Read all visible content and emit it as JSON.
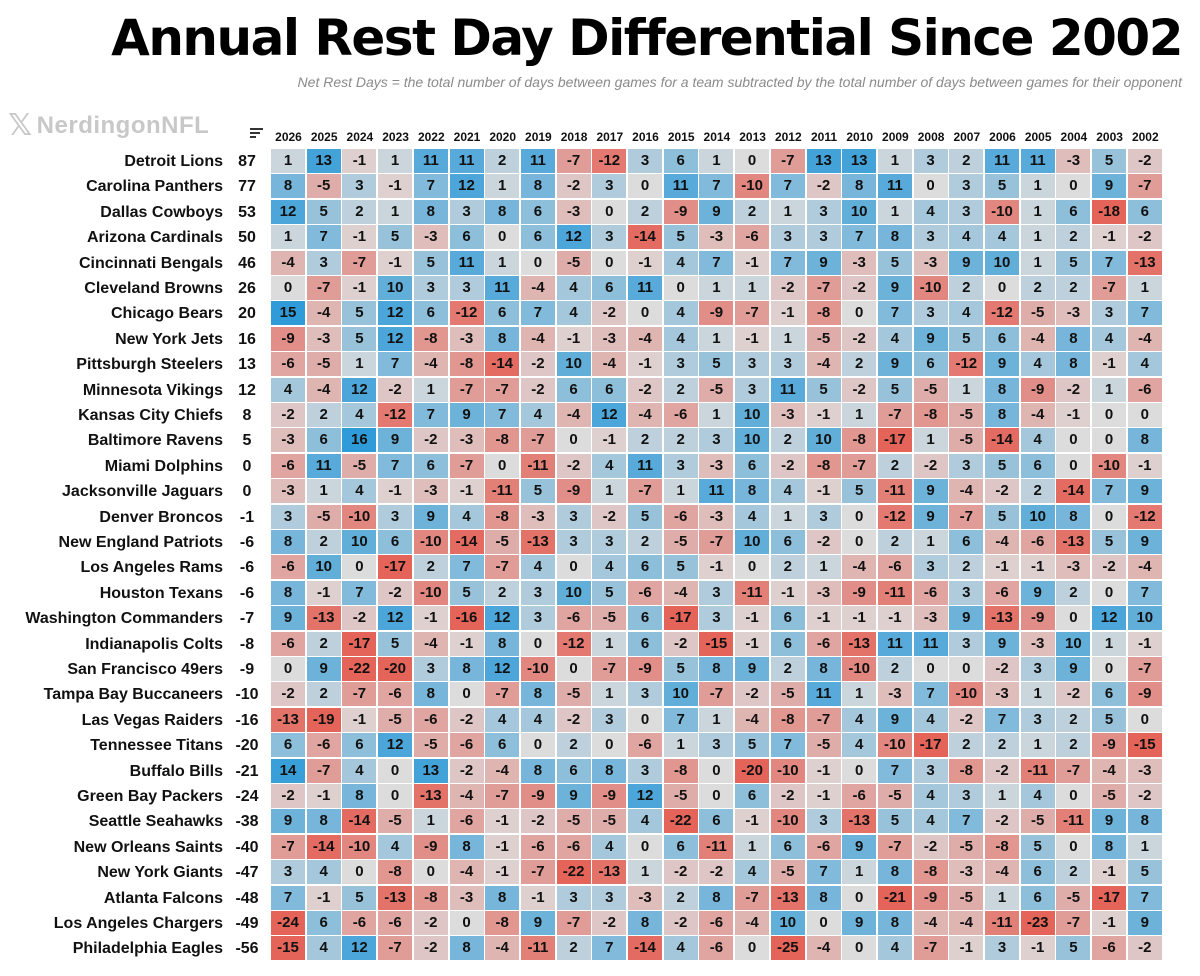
{
  "title": "Annual Rest Day Differential Since 2002",
  "subtitle": "Net Rest Days  =   the total number of days between games for a team subtracted by the total number of days between games for their opponent",
  "logo": {
    "mark": "𝕏",
    "text": "NerdingonNFL"
  },
  "colors": {
    "positive": "#2f9bd8",
    "negative": "#e4645a",
    "neutral": "#dcdcdc"
  },
  "icons": [
    "x-logo-icon",
    "sort-icon"
  ],
  "chart_data": {
    "type": "heatmap",
    "title": "Annual Rest Day Differential Since 2002",
    "columns": [
      "2026",
      "2025",
      "2024",
      "2023",
      "2022",
      "2021",
      "2020",
      "2019",
      "2018",
      "2017",
      "2016",
      "2015",
      "2014",
      "2013",
      "2012",
      "2011",
      "2010",
      "2009",
      "2008",
      "2007",
      "2006",
      "2005",
      "2004",
      "2003",
      "2002"
    ],
    "rows": [
      {
        "team": "Detroit Lions",
        "total": 87,
        "values": [
          1,
          13,
          -1,
          1,
          11,
          11,
          2,
          11,
          -7,
          -12,
          3,
          6,
          1,
          0,
          -7,
          13,
          13,
          1,
          3,
          2,
          11,
          11,
          -3,
          5,
          -2
        ]
      },
      {
        "team": "Carolina Panthers",
        "total": 77,
        "values": [
          8,
          -5,
          3,
          -1,
          7,
          12,
          1,
          8,
          -2,
          3,
          0,
          11,
          7,
          -10,
          7,
          -2,
          8,
          11,
          0,
          3,
          5,
          1,
          0,
          9,
          -7
        ]
      },
      {
        "team": "Dallas Cowboys",
        "total": 53,
        "values": [
          12,
          5,
          2,
          1,
          8,
          3,
          8,
          6,
          -3,
          0,
          2,
          -9,
          9,
          2,
          1,
          3,
          10,
          1,
          4,
          3,
          -10,
          1,
          6,
          -18,
          6
        ]
      },
      {
        "team": "Arizona Cardinals",
        "total": 50,
        "values": [
          1,
          7,
          -1,
          5,
          -3,
          6,
          0,
          6,
          12,
          3,
          -14,
          5,
          -3,
          -6,
          3,
          3,
          7,
          8,
          3,
          4,
          4,
          1,
          2,
          -1,
          -2
        ]
      },
      {
        "team": "Cincinnati Bengals",
        "total": 46,
        "values": [
          -4,
          3,
          -7,
          -1,
          5,
          11,
          1,
          0,
          -5,
          0,
          -1,
          4,
          7,
          -1,
          7,
          9,
          -3,
          5,
          -3,
          9,
          10,
          1,
          5,
          7,
          -13
        ]
      },
      {
        "team": "Cleveland Browns",
        "total": 26,
        "values": [
          0,
          -7,
          -1,
          10,
          3,
          3,
          11,
          -4,
          4,
          6,
          11,
          0,
          1,
          1,
          -2,
          -7,
          -2,
          9,
          -10,
          2,
          0,
          2,
          2,
          -7,
          1
        ]
      },
      {
        "team": "Chicago Bears",
        "total": 20,
        "values": [
          15,
          -4,
          5,
          12,
          6,
          -12,
          6,
          7,
          4,
          -2,
          0,
          4,
          -9,
          -7,
          -1,
          -8,
          0,
          7,
          3,
          4,
          -12,
          -5,
          -3,
          3,
          7
        ]
      },
      {
        "team": "New York Jets",
        "total": 16,
        "values": [
          -9,
          -3,
          5,
          12,
          -8,
          -3,
          8,
          -4,
          -1,
          -3,
          -4,
          4,
          1,
          -1,
          1,
          -5,
          -2,
          4,
          9,
          5,
          6,
          -4,
          8,
          4,
          -4
        ]
      },
      {
        "team": "Pittsburgh Steelers",
        "total": 13,
        "values": [
          -6,
          -5,
          1,
          7,
          -4,
          -8,
          -14,
          -2,
          10,
          -4,
          -1,
          3,
          5,
          3,
          3,
          -4,
          2,
          9,
          6,
          -12,
          9,
          4,
          8,
          -1,
          4
        ]
      },
      {
        "team": "Minnesota Vikings",
        "total": 12,
        "values": [
          4,
          -4,
          12,
          -2,
          1,
          -7,
          -7,
          -2,
          6,
          6,
          -2,
          2,
          -5,
          3,
          11,
          5,
          -2,
          5,
          -5,
          1,
          8,
          -9,
          -2,
          1,
          -6
        ]
      },
      {
        "team": "Kansas City Chiefs",
        "total": 8,
        "values": [
          -2,
          2,
          4,
          -12,
          7,
          9,
          7,
          4,
          -4,
          12,
          -4,
          -6,
          1,
          10,
          -3,
          -1,
          1,
          -7,
          -8,
          -5,
          8,
          -4,
          -1,
          0,
          0
        ]
      },
      {
        "team": "Baltimore Ravens",
        "total": 5,
        "values": [
          -3,
          6,
          16,
          9,
          -2,
          -3,
          -8,
          -7,
          0,
          -1,
          2,
          2,
          3,
          10,
          2,
          10,
          -8,
          -17,
          1,
          -5,
          -14,
          4,
          0,
          0,
          8
        ]
      },
      {
        "team": "Miami Dolphins",
        "total": 0,
        "values": [
          -6,
          11,
          -5,
          7,
          6,
          -7,
          0,
          -11,
          -2,
          4,
          11,
          3,
          -3,
          6,
          -2,
          -8,
          -7,
          2,
          -2,
          3,
          5,
          6,
          0,
          -10,
          -1
        ]
      },
      {
        "team": "Jacksonville Jaguars",
        "total": 0,
        "values": [
          -3,
          1,
          4,
          -1,
          -3,
          -1,
          -11,
          5,
          -9,
          1,
          -7,
          1,
          11,
          8,
          4,
          -1,
          5,
          -11,
          9,
          -4,
          -2,
          2,
          -14,
          7,
          9
        ]
      },
      {
        "team": "Denver Broncos",
        "total": -1,
        "values": [
          3,
          -5,
          -10,
          3,
          9,
          4,
          -8,
          -3,
          3,
          -2,
          5,
          -6,
          -3,
          4,
          1,
          3,
          0,
          -12,
          9,
          -7,
          5,
          10,
          8,
          0,
          -12
        ]
      },
      {
        "team": "New England Patriots",
        "total": -6,
        "values": [
          8,
          2,
          10,
          6,
          -10,
          -14,
          -5,
          -13,
          3,
          3,
          2,
          -5,
          -7,
          10,
          6,
          -2,
          0,
          2,
          1,
          6,
          -4,
          -6,
          -13,
          5,
          9
        ]
      },
      {
        "team": "Los Angeles Rams",
        "total": -6,
        "values": [
          -6,
          10,
          0,
          -17,
          2,
          7,
          -7,
          4,
          0,
          4,
          6,
          5,
          -1,
          0,
          2,
          1,
          -4,
          -6,
          3,
          2,
          -1,
          -1,
          -3,
          -2,
          -4
        ]
      },
      {
        "team": "Houston Texans",
        "total": -6,
        "values": [
          8,
          -1,
          7,
          -2,
          -10,
          5,
          2,
          3,
          10,
          5,
          -6,
          -4,
          3,
          -11,
          -1,
          -3,
          -9,
          -11,
          -6,
          3,
          -6,
          9,
          2,
          0,
          7
        ]
      },
      {
        "team": "Washington Commanders",
        "total": -7,
        "values": [
          9,
          -13,
          -2,
          12,
          -1,
          -16,
          12,
          3,
          -6,
          -5,
          6,
          -17,
          3,
          -1,
          6,
          -1,
          -1,
          -1,
          -3,
          9,
          -13,
          -9,
          0,
          12,
          10
        ]
      },
      {
        "team": "Indianapolis Colts",
        "total": -8,
        "values": [
          -6,
          2,
          -17,
          5,
          -4,
          -1,
          8,
          0,
          -12,
          1,
          6,
          -2,
          -15,
          -1,
          6,
          -6,
          -13,
          11,
          11,
          3,
          9,
          -3,
          10,
          1,
          -1
        ]
      },
      {
        "team": "San Francisco 49ers",
        "total": -9,
        "values": [
          0,
          9,
          -22,
          -20,
          3,
          8,
          12,
          -10,
          0,
          -7,
          -9,
          5,
          8,
          9,
          2,
          8,
          -10,
          2,
          0,
          0,
          -2,
          3,
          9,
          0,
          -7
        ]
      },
      {
        "team": "Tampa Bay Buccaneers",
        "total": -10,
        "values": [
          -2,
          2,
          -7,
          -6,
          8,
          0,
          -7,
          8,
          -5,
          1,
          3,
          10,
          -7,
          -2,
          -5,
          11,
          1,
          -3,
          7,
          -10,
          -3,
          1,
          -2,
          6,
          -9
        ]
      },
      {
        "team": "Las Vegas Raiders",
        "total": -16,
        "values": [
          -13,
          -19,
          -1,
          -5,
          -6,
          -2,
          4,
          4,
          -2,
          3,
          0,
          7,
          1,
          -4,
          -8,
          -7,
          4,
          9,
          4,
          -2,
          7,
          3,
          2,
          5,
          0
        ]
      },
      {
        "team": "Tennessee Titans",
        "total": -20,
        "values": [
          6,
          -6,
          6,
          12,
          -5,
          -6,
          6,
          0,
          2,
          0,
          -6,
          1,
          3,
          5,
          7,
          -5,
          4,
          -10,
          -17,
          2,
          2,
          1,
          2,
          -9,
          -15
        ]
      },
      {
        "team": "Buffalo Bills",
        "total": -21,
        "values": [
          14,
          -7,
          4,
          0,
          13,
          -2,
          -4,
          8,
          6,
          8,
          3,
          -8,
          0,
          -20,
          -10,
          -1,
          0,
          7,
          3,
          -8,
          -2,
          -11,
          -7,
          -4,
          -3
        ]
      },
      {
        "team": "Green Bay Packers",
        "total": -24,
        "values": [
          -2,
          -1,
          8,
          0,
          -13,
          -4,
          -7,
          -9,
          9,
          -9,
          12,
          -5,
          0,
          6,
          -2,
          -1,
          -6,
          -5,
          4,
          3,
          1,
          4,
          0,
          -5,
          -2
        ]
      },
      {
        "team": "Seattle Seahawks",
        "total": -38,
        "values": [
          9,
          8,
          -14,
          -5,
          1,
          -6,
          -1,
          -2,
          -5,
          -5,
          4,
          -22,
          6,
          -1,
          -10,
          3,
          -13,
          5,
          4,
          7,
          -2,
          -5,
          -11,
          9,
          8
        ]
      },
      {
        "team": "New Orleans Saints",
        "total": -40,
        "values": [
          -7,
          -14,
          -10,
          4,
          -9,
          8,
          -1,
          -6,
          -6,
          4,
          0,
          6,
          -11,
          1,
          6,
          -6,
          9,
          -7,
          -2,
          -5,
          -8,
          5,
          0,
          8,
          1
        ]
      },
      {
        "team": "New York Giants",
        "total": -47,
        "values": [
          3,
          4,
          0,
          -8,
          0,
          -4,
          -1,
          -7,
          -22,
          -13,
          1,
          -2,
          -2,
          4,
          -5,
          7,
          1,
          8,
          -8,
          -3,
          -4,
          6,
          2,
          -1,
          5
        ]
      },
      {
        "team": "Atlanta Falcons",
        "total": -48,
        "values": [
          7,
          -1,
          5,
          -13,
          -8,
          -3,
          8,
          -1,
          3,
          3,
          -3,
          2,
          8,
          -7,
          -13,
          8,
          0,
          -21,
          -9,
          -5,
          1,
          6,
          -5,
          -17,
          7
        ]
      },
      {
        "team": "Los Angeles Chargers",
        "total": -49,
        "values": [
          -24,
          6,
          -6,
          -6,
          -2,
          0,
          -8,
          9,
          -7,
          -2,
          8,
          -2,
          -6,
          -4,
          10,
          0,
          9,
          8,
          -4,
          -4,
          -11,
          -23,
          -7,
          -1,
          9
        ]
      },
      {
        "team": "Philadelphia Eagles",
        "total": -56,
        "values": [
          -15,
          4,
          12,
          -7,
          -2,
          8,
          -4,
          -11,
          2,
          7,
          -14,
          4,
          -6,
          0,
          -25,
          -4,
          0,
          4,
          -7,
          -1,
          3,
          -1,
          5,
          -6,
          -2
        ]
      }
    ]
  }
}
